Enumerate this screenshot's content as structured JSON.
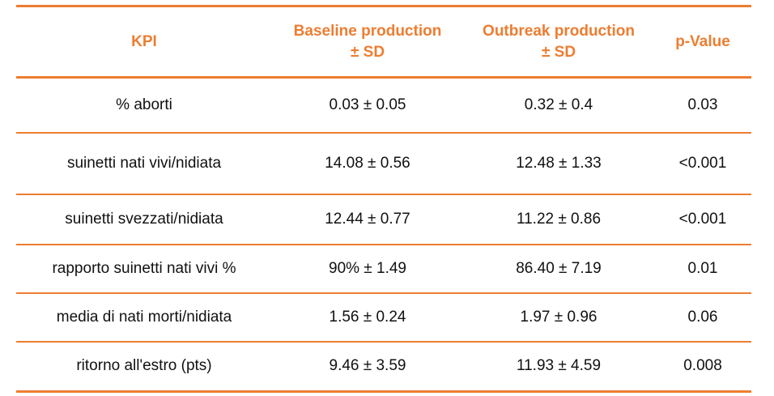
{
  "table": {
    "headers": [
      {
        "line1": "KPI",
        "line2": ""
      },
      {
        "line1": "Baseline production",
        "line2": "± SD"
      },
      {
        "line1": "Outbreak production",
        "line2": "± SD"
      },
      {
        "line1": "p-Value",
        "line2": ""
      }
    ],
    "rows": [
      {
        "kpi": "% aborti",
        "baseline": "0.03 ± 0.05",
        "outbreak": "0.32 ± 0.4",
        "p": "0.03"
      },
      {
        "kpi": "suinetti nati vivi/nidiata",
        "baseline": "14.08 ± 0.56",
        "outbreak": "12.48 ± 1.33",
        "p": "<0.001"
      },
      {
        "kpi": "suinetti svezzati/nidiata",
        "baseline": "12.44 ± 0.77",
        "outbreak": "11.22 ± 0.86",
        "p": "<0.001"
      },
      {
        "kpi": "rapporto suinetti nati vivi %",
        "baseline": "90% ± 1.49",
        "outbreak": "86.40 ± 7.19",
        "p": "0.01"
      },
      {
        "kpi": "media di nati morti/nidiata",
        "baseline": "1.56 ± 0.24",
        "outbreak": "1.97 ± 0.96",
        "p": "0.06"
      },
      {
        "kpi": "ritorno all'estro (pts)",
        "baseline": "9.46 ± 3.59",
        "outbreak": "11.93 ± 4.59",
        "p": "0.008"
      }
    ]
  },
  "colors": {
    "accent": "#ED7D31",
    "text": "#111111"
  }
}
